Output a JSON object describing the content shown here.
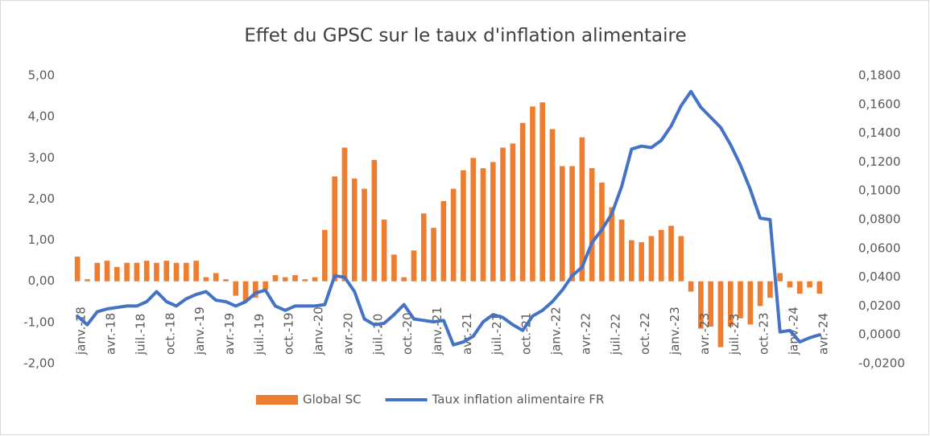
{
  "chart_data": {
    "type": "bar-line",
    "title": "Effet du GPSC sur le taux d'inflation alimentaire",
    "categories": [
      "janv.-18",
      null,
      null,
      "avr.-18",
      null,
      null,
      "juil.-18",
      null,
      null,
      "oct.-18",
      null,
      null,
      "janv.-19",
      null,
      null,
      "avr.-19",
      null,
      null,
      "juil.-19",
      null,
      null,
      "oct.-19",
      null,
      null,
      "janv.-20",
      null,
      null,
      "avr.-20",
      null,
      null,
      "juil.-20",
      null,
      null,
      "oct.-20",
      null,
      null,
      "janv.-21",
      null,
      null,
      "avr.-21",
      null,
      null,
      "juil.-21",
      null,
      null,
      "oct.-21",
      null,
      null,
      "janv.-22",
      null,
      null,
      "avr.-22",
      null,
      null,
      "juil.-22",
      null,
      null,
      "oct.-22",
      null,
      null,
      "janv.-23",
      null,
      null,
      "avr.-23",
      null,
      null,
      "juil.-23",
      null,
      null,
      "oct.-23",
      null,
      null,
      "janv.-24",
      null,
      null,
      "avr.-24"
    ],
    "series": [
      {
        "name": "Global SC",
        "color": "#ed7d31",
        "kind": "bar",
        "values": [
          0.6,
          0.05,
          0.45,
          0.5,
          0.35,
          0.45,
          0.45,
          0.5,
          0.45,
          0.5,
          0.45,
          0.45,
          0.5,
          0.1,
          0.2,
          0.05,
          -0.35,
          -0.5,
          -0.4,
          -0.2,
          0.15,
          0.1,
          0.15,
          0.05,
          0.1,
          1.25,
          2.55,
          3.25,
          2.5,
          2.25,
          2.95,
          1.5,
          0.65,
          0.1,
          0.75,
          1.65,
          1.3,
          1.95,
          2.25,
          2.7,
          3.0,
          2.75,
          2.9,
          3.25,
          3.35,
          3.85,
          4.25,
          4.35,
          3.7,
          2.8,
          2.8,
          3.5,
          2.75,
          2.4,
          1.8,
          1.5,
          1.0,
          0.95,
          1.1,
          1.25,
          1.35,
          1.1,
          -0.25,
          -1.15,
          -1.1,
          -1.6,
          -1.1,
          -0.9,
          -1.05,
          -0.6,
          -0.4,
          0.2,
          -0.15,
          -0.3,
          -0.15,
          -0.3
        ]
      },
      {
        "name": "Taux inflation alimentaire FR",
        "color": "#4472c4",
        "kind": "line",
        "axis": "y2",
        "values": [
          0.013,
          0.007,
          0.016,
          0.018,
          0.019,
          0.02,
          0.02,
          0.023,
          0.03,
          0.023,
          0.02,
          0.025,
          0.028,
          0.03,
          0.024,
          0.023,
          0.02,
          0.023,
          0.029,
          0.031,
          0.02,
          0.017,
          0.02,
          0.02,
          0.02,
          0.021,
          0.041,
          0.04,
          0.03,
          0.011,
          0.007,
          0.008,
          0.014,
          0.021,
          0.011,
          0.01,
          0.009,
          0.01,
          -0.007,
          -0.005,
          -0.001,
          0.009,
          0.014,
          0.012,
          0.007,
          0.003,
          0.013,
          0.017,
          0.023,
          0.031,
          0.041,
          0.047,
          0.064,
          0.073,
          0.084,
          0.103,
          0.129,
          0.131,
          0.13,
          0.135,
          0.145,
          0.159,
          0.169,
          0.158,
          0.151,
          0.144,
          0.132,
          0.118,
          0.101,
          0.081,
          0.08,
          0.002,
          0.003,
          -0.005,
          -0.002,
          0.0
        ]
      }
    ],
    "ylim": [
      -2,
      5
    ],
    "yticks": [
      {
        "value": -2,
        "label": "-2,00"
      },
      {
        "value": -1,
        "label": "-1,00"
      },
      {
        "value": 0,
        "label": "0,00"
      },
      {
        "value": 1,
        "label": "1,00"
      },
      {
        "value": 2,
        "label": "2,00"
      },
      {
        "value": 3,
        "label": "3,00"
      },
      {
        "value": 4,
        "label": "4,00"
      },
      {
        "value": 5,
        "label": "5,00"
      }
    ],
    "y2lim": [
      -0.02,
      0.18
    ],
    "y2ticks": [
      {
        "value": -0.02,
        "label": "-0,0200"
      },
      {
        "value": 0,
        "label": "0,0000"
      },
      {
        "value": 0.02,
        "label": "0,0200"
      },
      {
        "value": 0.04,
        "label": "0,0400"
      },
      {
        "value": 0.06,
        "label": "0,0600"
      },
      {
        "value": 0.08,
        "label": "0,0800"
      },
      {
        "value": 0.1,
        "label": "0,1000"
      },
      {
        "value": 0.12,
        "label": "0,1200"
      },
      {
        "value": 0.14,
        "label": "0,1400"
      },
      {
        "value": 0.16,
        "label": "0,1600"
      },
      {
        "value": 0.18,
        "label": "0,1800"
      }
    ],
    "legend": "bottom"
  }
}
